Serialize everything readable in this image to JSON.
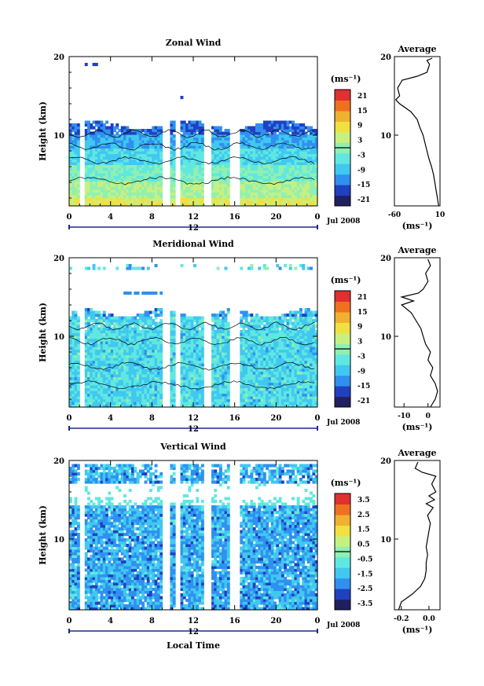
{
  "figure": {
    "local_time_label": "Local Time",
    "month_label": "Jul 2008",
    "day_label": "12",
    "units": "(ms⁻¹)",
    "average_title": "Average"
  },
  "colors": {
    "scale": [
      "#202060",
      "#2040c0",
      "#3090f0",
      "#40c8f0",
      "#60e8e0",
      "#90f0b0",
      "#c8f080",
      "#f0e040",
      "#f0b030",
      "#f07020",
      "#e03030"
    ],
    "background": "#ffffff"
  },
  "chart_data": [
    {
      "type": "heatmap",
      "title": "Zonal Wind",
      "ylabel": "Height (km)",
      "xlabel": "",
      "x_ticks": [
        "0",
        "4",
        "8",
        "12",
        "16",
        "20",
        "0"
      ],
      "x_range": [
        0,
        24
      ],
      "y_ticks": [
        "10",
        "20"
      ],
      "y_range": [
        1,
        20
      ],
      "colorbar": {
        "label": "(ms⁻¹)",
        "ticks": [
          "21",
          "15",
          "9",
          "3",
          "-3",
          "-9",
          "-15",
          "-21"
        ],
        "range": [
          -24,
          24
        ]
      },
      "gaps_hours": [
        [
          1.0,
          1.5
        ],
        [
          9.0,
          9.6
        ],
        [
          10.1,
          10.6
        ],
        [
          13.0,
          13.6
        ],
        [
          15.5,
          16.4
        ]
      ],
      "profile": {
        "title": "Average",
        "x_ticks": [
          "-60",
          "10"
        ],
        "x_range": [
          -60,
          10
        ],
        "y_ticks": [
          "10",
          "20"
        ],
        "xlabel": "(ms⁻¹)",
        "points": [
          [
            8,
            1
          ],
          [
            6,
            2
          ],
          [
            4,
            3
          ],
          [
            2,
            4
          ],
          [
            0,
            5
          ],
          [
            -3,
            6
          ],
          [
            -7,
            7
          ],
          [
            -10,
            8
          ],
          [
            -13,
            9
          ],
          [
            -16,
            10
          ],
          [
            -21,
            11
          ],
          [
            -25,
            12
          ],
          [
            -35,
            13
          ],
          [
            -52,
            14
          ],
          [
            -58,
            14.5
          ],
          [
            -52,
            15
          ],
          [
            -55,
            16
          ],
          [
            -48,
            17
          ],
          [
            -25,
            17.5
          ],
          [
            -10,
            18
          ],
          [
            -6,
            19
          ],
          [
            -10,
            19.5
          ],
          [
            -2,
            19.8
          ]
        ]
      }
    },
    {
      "type": "heatmap",
      "title": "Meridional Wind",
      "ylabel": "Height (km)",
      "xlabel": "",
      "x_ticks": [
        "0",
        "4",
        "8",
        "12",
        "16",
        "20",
        "0"
      ],
      "x_range": [
        0,
        24
      ],
      "y_ticks": [
        "10",
        "20"
      ],
      "y_range": [
        1,
        20
      ],
      "colorbar": {
        "label": "(ms⁻¹)",
        "ticks": [
          "21",
          "15",
          "9",
          "3",
          "-3",
          "-9",
          "-15",
          "-21"
        ],
        "range": [
          -24,
          24
        ]
      },
      "gaps_hours": [
        [
          1.0,
          1.5
        ],
        [
          9.0,
          9.6
        ],
        [
          10.1,
          10.6
        ],
        [
          13.0,
          13.6
        ],
        [
          15.5,
          16.4
        ]
      ],
      "profile": {
        "title": "Average",
        "x_ticks": [
          "-10",
          "0"
        ],
        "x_range": [
          -14,
          5
        ],
        "y_ticks": [
          "10",
          "20"
        ],
        "xlabel": "(ms⁻¹)",
        "points": [
          [
            1,
            1
          ],
          [
            3,
            2
          ],
          [
            4,
            3
          ],
          [
            3,
            4
          ],
          [
            1,
            5
          ],
          [
            2,
            6
          ],
          [
            0,
            7
          ],
          [
            1,
            8
          ],
          [
            -1,
            9
          ],
          [
            -2,
            10
          ],
          [
            -3,
            11
          ],
          [
            -5,
            12
          ],
          [
            -7,
            13
          ],
          [
            -11,
            14
          ],
          [
            -6,
            14.5
          ],
          [
            -11,
            15
          ],
          [
            -4,
            15.5
          ],
          [
            -2,
            16
          ],
          [
            0,
            17
          ],
          [
            -1,
            18
          ],
          [
            1,
            19
          ],
          [
            0,
            19.8
          ]
        ]
      }
    },
    {
      "type": "heatmap",
      "title": "Vertical Wind",
      "ylabel": "Height (km)",
      "xlabel": "Local Time",
      "x_ticks": [
        "0",
        "4",
        "8",
        "12",
        "16",
        "20",
        "0"
      ],
      "x_range": [
        0,
        24
      ],
      "y_ticks": [
        "10",
        "20"
      ],
      "y_range": [
        1,
        20
      ],
      "colorbar": {
        "label": "(ms⁻¹)",
        "ticks": [
          "3.5",
          "2.5",
          "1.5",
          "0.5",
          "-0.5",
          "-1.5",
          "-2.5",
          "-3.5"
        ],
        "range": [
          -4,
          4
        ]
      },
      "gaps_hours": [
        [
          1.0,
          1.5
        ],
        [
          9.0,
          9.6
        ],
        [
          10.1,
          10.6
        ],
        [
          13.0,
          13.6
        ],
        [
          15.5,
          16.4
        ]
      ],
      "profile": {
        "title": "Average",
        "x_ticks": [
          "-0.2",
          "0.0"
        ],
        "x_range": [
          -0.25,
          0.08
        ],
        "y_ticks": [
          "10",
          "20"
        ],
        "xlabel": "(ms⁻¹)",
        "points": [
          [
            -0.22,
            1
          ],
          [
            -0.2,
            2
          ],
          [
            -0.12,
            3
          ],
          [
            -0.06,
            4
          ],
          [
            -0.03,
            5
          ],
          [
            -0.02,
            6
          ],
          [
            -0.02,
            7
          ],
          [
            -0.01,
            8
          ],
          [
            -0.02,
            9
          ],
          [
            -0.01,
            10
          ],
          [
            0.0,
            11
          ],
          [
            0.01,
            12
          ],
          [
            -0.01,
            13
          ],
          [
            0.03,
            14
          ],
          [
            -0.02,
            14.5
          ],
          [
            0.04,
            15
          ],
          [
            0.0,
            15.5
          ],
          [
            0.05,
            16
          ],
          [
            0.02,
            17
          ],
          [
            0.05,
            18
          ],
          [
            -0.05,
            18.5
          ],
          [
            -0.1,
            19
          ],
          [
            -0.08,
            19.8
          ]
        ]
      }
    }
  ]
}
